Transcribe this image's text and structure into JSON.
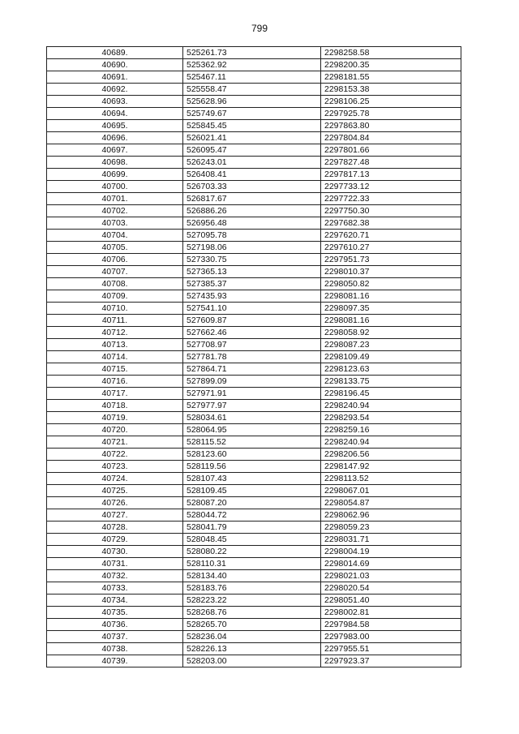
{
  "header": {
    "page_number": "799"
  },
  "table": {
    "rows": [
      [
        "40689.",
        "525261.73",
        "2298258.58"
      ],
      [
        "40690.",
        "525362.92",
        "2298200.35"
      ],
      [
        "40691.",
        "525467.11",
        "2298181.55"
      ],
      [
        "40692.",
        "525558.47",
        "2298153.38"
      ],
      [
        "40693.",
        "525628.96",
        "2298106.25"
      ],
      [
        "40694.",
        "525749.67",
        "2297925.78"
      ],
      [
        "40695.",
        "525845.45",
        "2297863.80"
      ],
      [
        "40696.",
        "526021.41",
        "2297804.84"
      ],
      [
        "40697.",
        "526095.47",
        "2297801.66"
      ],
      [
        "40698.",
        "526243.01",
        "2297827.48"
      ],
      [
        "40699.",
        "526408.41",
        "2297817.13"
      ],
      [
        "40700.",
        "526703.33",
        "2297733.12"
      ],
      [
        "40701.",
        "526817.67",
        "2297722.33"
      ],
      [
        "40702.",
        "526886.26",
        "2297750.30"
      ],
      [
        "40703.",
        "526956.48",
        "2297682.38"
      ],
      [
        "40704.",
        "527095.78",
        "2297620.71"
      ],
      [
        "40705.",
        "527198.06",
        "2297610.27"
      ],
      [
        "40706.",
        "527330.75",
        "2297951.73"
      ],
      [
        "40707.",
        "527365.13",
        "2298010.37"
      ],
      [
        "40708.",
        "527385.37",
        "2298050.82"
      ],
      [
        "40709.",
        "527435.93",
        "2298081.16"
      ],
      [
        "40710.",
        "527541.10",
        "2298097.35"
      ],
      [
        "40711.",
        "527609.87",
        "2298081.16"
      ],
      [
        "40712.",
        "527662.46",
        "2298058.92"
      ],
      [
        "40713.",
        "527708.97",
        "2298087.23"
      ],
      [
        "40714.",
        "527781.78",
        "2298109.49"
      ],
      [
        "40715.",
        "527864.71",
        "2298123.63"
      ],
      [
        "40716.",
        "527899.09",
        "2298133.75"
      ],
      [
        "40717.",
        "527971.91",
        "2298196.45"
      ],
      [
        "40718.",
        "527977.97",
        "2298240.94"
      ],
      [
        "40719.",
        "528034.61",
        "2298293.54"
      ],
      [
        "40720.",
        "528064.95",
        "2298259.16"
      ],
      [
        "40721.",
        "528115.52",
        "2298240.94"
      ],
      [
        "40722.",
        "528123.60",
        "2298206.56"
      ],
      [
        "40723.",
        "528119.56",
        "2298147.92"
      ],
      [
        "40724.",
        "528107.43",
        "2298113.52"
      ],
      [
        "40725.",
        "528109.45",
        "2298067.01"
      ],
      [
        "40726.",
        "528087.20",
        "2298054.87"
      ],
      [
        "40727.",
        "528044.72",
        "2298062.96"
      ],
      [
        "40728.",
        "528041.79",
        "2298059.23"
      ],
      [
        "40729.",
        "528048.45",
        "2298031.71"
      ],
      [
        "40730.",
        "528080.22",
        "2298004.19"
      ],
      [
        "40731.",
        "528110.31",
        "2298014.69"
      ],
      [
        "40732.",
        "528134.40",
        "2298021.03"
      ],
      [
        "40733.",
        "528183.76",
        "2298020.54"
      ],
      [
        "40734.",
        "528223.22",
        "2298051.40"
      ],
      [
        "40735.",
        "528268.76",
        "2298002.81"
      ],
      [
        "40736.",
        "528265.70",
        "2297984.58"
      ],
      [
        "40737.",
        "528236.04",
        "2297983.00"
      ],
      [
        "40738.",
        "528226.13",
        "2297955.51"
      ],
      [
        "40739.",
        "528203.00",
        "2297923.37"
      ]
    ]
  }
}
